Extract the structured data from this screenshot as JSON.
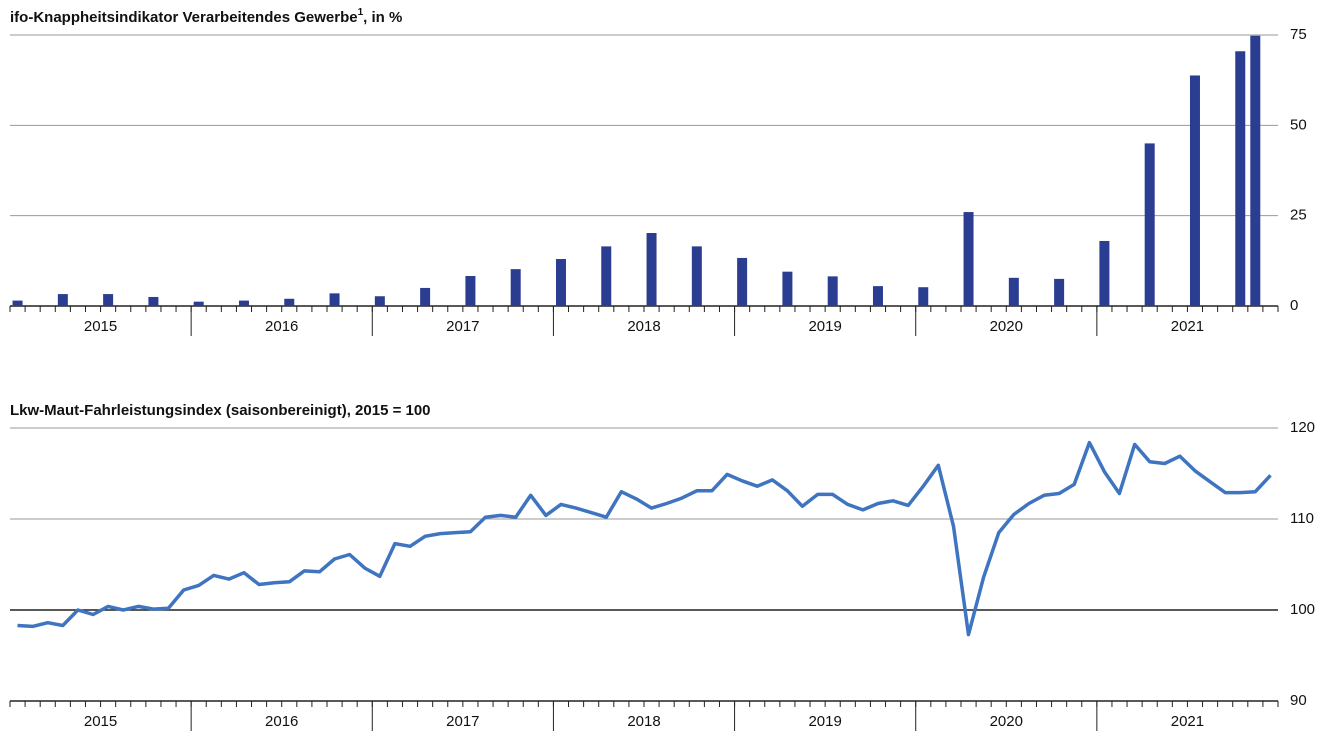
{
  "chart_data": [
    {
      "type": "bar",
      "title": "ifo-Knappheitsindikator Verarbeitendes Gewerbe",
      "footnote_mark": "1",
      "title_suffix": ", in %",
      "x": [
        2015,
        2015.25,
        2015.5,
        2015.75,
        2016,
        2016.25,
        2016.5,
        2016.75,
        2017,
        2017.25,
        2017.5,
        2017.75,
        2018,
        2018.25,
        2018.5,
        2018.75,
        2019,
        2019.25,
        2019.5,
        2019.75,
        2020,
        2020.25,
        2020.5,
        2020.75,
        2021,
        2021.25,
        2021.5,
        2021.75,
        2021.833
      ],
      "values": [
        1.5,
        3.3,
        3.3,
        2.5,
        1.2,
        1.5,
        2,
        3.5,
        2.7,
        5,
        8.3,
        10.2,
        13,
        16.5,
        20.2,
        16.5,
        13.3,
        9.5,
        8.2,
        5.5,
        5.2,
        26,
        7.8,
        7.5,
        18,
        45,
        63.8,
        70.5,
        74.8
      ],
      "color": "#2b3d91",
      "xlim": [
        2015,
        2022
      ],
      "xticks": [
        2016,
        2017,
        2018,
        2019,
        2020,
        2021
      ],
      "years": [
        "2015",
        "2016",
        "2017",
        "2018",
        "2019",
        "2020",
        "2021"
      ],
      "ylim": [
        0,
        75
      ],
      "yticks": [
        0,
        25,
        50,
        75
      ],
      "grid": true,
      "baseline": 0
    },
    {
      "type": "line",
      "title": "Lkw-Maut-Fahrleistungsindex (saisonbereinigt), 2015 = 100",
      "x": [
        2015,
        2015.083,
        2015.167,
        2015.25,
        2015.333,
        2015.417,
        2015.5,
        2015.583,
        2015.667,
        2015.75,
        2015.833,
        2015.917,
        2016,
        2016.083,
        2016.167,
        2016.25,
        2016.333,
        2016.417,
        2016.5,
        2016.583,
        2016.667,
        2016.75,
        2016.833,
        2016.917,
        2017,
        2017.083,
        2017.167,
        2017.25,
        2017.333,
        2017.417,
        2017.5,
        2017.583,
        2017.667,
        2017.75,
        2017.833,
        2017.917,
        2018,
        2018.083,
        2018.167,
        2018.25,
        2018.333,
        2018.417,
        2018.5,
        2018.583,
        2018.667,
        2018.75,
        2018.833,
        2018.917,
        2019,
        2019.083,
        2019.167,
        2019.25,
        2019.333,
        2019.417,
        2019.5,
        2019.583,
        2019.667,
        2019.75,
        2019.833,
        2019.917,
        2020,
        2020.083,
        2020.167,
        2020.25,
        2020.333,
        2020.417,
        2020.5,
        2020.583,
        2020.667,
        2020.75,
        2020.833,
        2020.917,
        2021,
        2021.083,
        2021.167,
        2021.25,
        2021.333,
        2021.417,
        2021.5,
        2021.583,
        2021.667,
        2021.75,
        2021.833,
        2021.917
      ],
      "values": [
        98.3,
        98.2,
        98.6,
        98.3,
        100,
        99.5,
        100.4,
        100,
        100.4,
        100.1,
        100.2,
        102.2,
        102.7,
        103.8,
        103.4,
        104.1,
        102.8,
        103,
        103.1,
        104.3,
        104.2,
        105.6,
        106.1,
        104.6,
        103.7,
        107.3,
        107,
        108.1,
        108.4,
        108.5,
        108.6,
        110.2,
        110.4,
        110.2,
        112.6,
        110.4,
        111.6,
        111.2,
        110.7,
        110.2,
        113,
        112.2,
        111.2,
        111.7,
        112.3,
        113.1,
        113.1,
        114.9,
        114.2,
        113.6,
        114.3,
        113.1,
        111.4,
        112.7,
        112.7,
        111.6,
        111,
        111.7,
        112,
        111.5,
        113.6,
        115.9,
        109.2,
        97.3,
        103.6,
        108.5,
        110.5,
        111.7,
        112.6,
        112.8,
        113.8,
        118.4,
        115.2,
        112.8,
        118.2,
        116.3,
        116.1,
        116.9,
        115.3,
        114.1,
        112.9,
        112.9,
        113,
        114.8
      ],
      "color": "#3f74c0",
      "xlim": [
        2015,
        2022
      ],
      "xticks": [
        2016,
        2017,
        2018,
        2019,
        2020,
        2021
      ],
      "years": [
        "2015",
        "2016",
        "2017",
        "2018",
        "2019",
        "2020",
        "2021"
      ],
      "ylim": [
        90,
        120
      ],
      "yticks": [
        90,
        100,
        110,
        120
      ],
      "grid": true,
      "baseline": 100
    }
  ]
}
